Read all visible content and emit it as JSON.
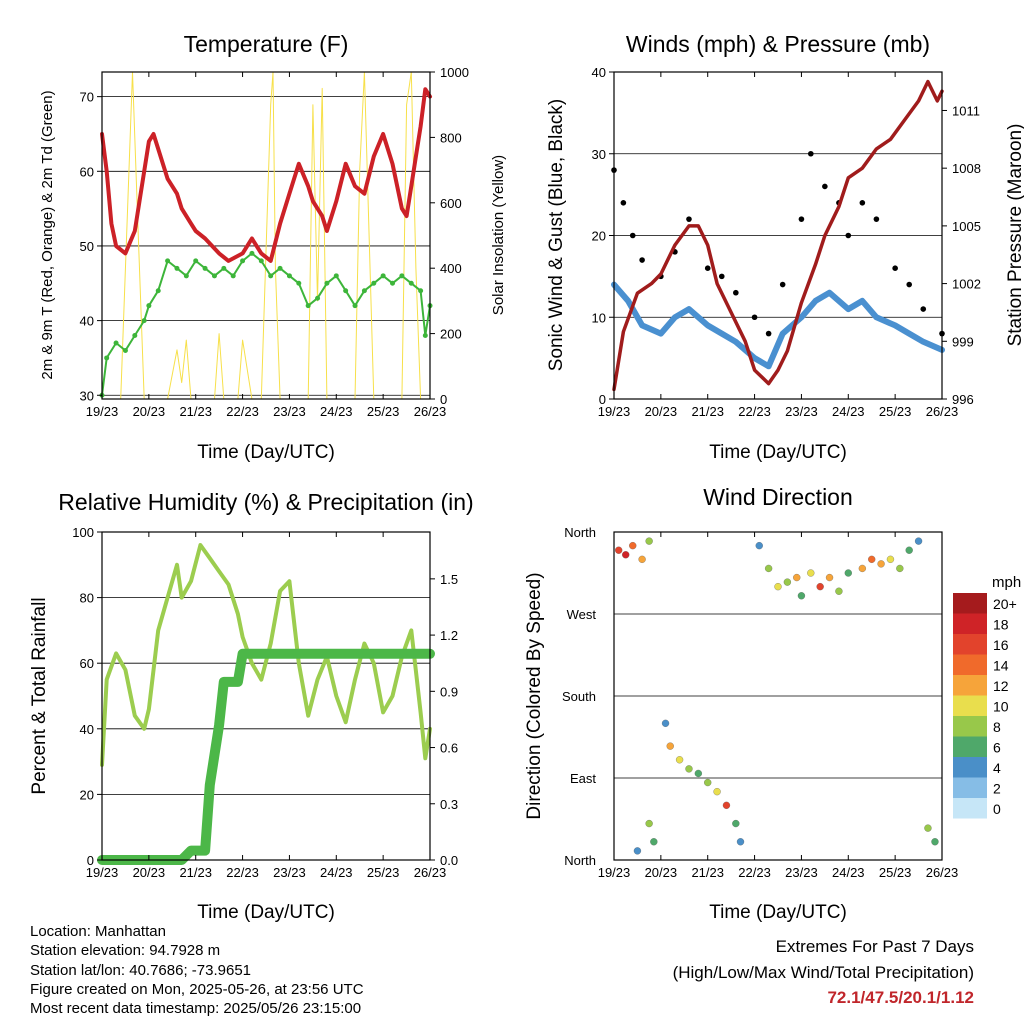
{
  "colors": {
    "temp_red": "#cc2127",
    "temp_orange": "#f08020",
    "dewpoint_green": "#3db53a",
    "solar_yellow": "#f7e04a",
    "gust_black": "#000000",
    "wind_blue": "#4a90d0",
    "pressure_maroon": "#a01c1c",
    "rh_lightgreen": "#9ccd4f",
    "precip_green": "#4cb748",
    "extremes_text": "#c0262b"
  },
  "time_ticks": [
    "19/23",
    "20/23",
    "21/23",
    "22/23",
    "23/23",
    "24/23",
    "25/23",
    "26/23"
  ],
  "panels": {
    "temperature": {
      "title": "Temperature (F)",
      "xlabel": "Time (Day/UTC)",
      "ylabel_left": "2m & 9m T (Red, Orange) & 2m Td (Green)",
      "ylabel_right": "Solar Insolation (Yellow)",
      "yticks_left": [
        "30",
        "40",
        "50",
        "60",
        "70"
      ],
      "yticks_right": [
        "0",
        "200",
        "400",
        "600",
        "800",
        "1000"
      ]
    },
    "winds": {
      "title": "Winds (mph) & Pressure (mb)",
      "xlabel": "Time (Day/UTC)",
      "ylabel_left": "Sonic Wind & Gust (Blue, Black)",
      "ylabel_right": "Station Pressure (Maroon)",
      "yticks_left": [
        "0",
        "10",
        "20",
        "30",
        "40"
      ],
      "yticks_right": [
        "996",
        "999",
        "1002",
        "1005",
        "1008",
        "1011"
      ]
    },
    "humidity": {
      "title": "Relative Humidity (%) & Precipitation (in)",
      "xlabel": "Time (Day/UTC)",
      "ylabel_left": "Percent & Total Rainfall",
      "yticks_left": [
        "0",
        "20",
        "40",
        "60",
        "80",
        "100"
      ],
      "yticks_right": [
        "0.0",
        "0.3",
        "0.6",
        "0.9",
        "1.2",
        "1.5"
      ]
    },
    "direction": {
      "title": "Wind Direction",
      "xlabel": "Time (Day/UTC)",
      "ylabel_left": "Direction (Colored By Speed)",
      "yticks_left": [
        "North",
        "East",
        "South",
        "West",
        "North"
      ],
      "legend_title": "mph",
      "legend_labels": [
        "20+",
        "18",
        "16",
        "14",
        "12",
        "10",
        "8",
        "6",
        "4",
        "2",
        "0"
      ],
      "legend_colors": [
        "#a51b1d",
        "#cf2327",
        "#e2432c",
        "#f06a2b",
        "#f6a43a",
        "#e9de4d",
        "#98c84a",
        "#4fa86a",
        "#4a8fc8",
        "#86bde6",
        "#c6e6f7"
      ]
    }
  },
  "info": {
    "location": "Location: Manhattan",
    "elevation": "Station elevation: 94.7928 m",
    "latlon": "Station lat/lon: 40.7686; -73.9651",
    "created": "Figure created on Mon, 2025-05-26, at 23:56 UTC",
    "recent": "Most recent data timestamp: 2025/05/26 23:15:00"
  },
  "extremes": {
    "line1": "Extremes For Past 7 Days",
    "line2": "(High/Low/Max Wind/Total Precipitation)",
    "values": "72.1/47.5/20.1/1.12"
  },
  "chart_data": [
    {
      "type": "line",
      "title": "Temperature (F)",
      "xlabel": "Time (Day/UTC)",
      "x_unit": "days since 19/23 UTC",
      "xlim": [
        0,
        7
      ],
      "ylim": [
        29.5,
        73.3
      ],
      "y2lim": [
        0,
        1000
      ],
      "series": [
        {
          "name": "2m T",
          "axis": "left",
          "x": [
            0,
            0.1,
            0.2,
            0.3,
            0.5,
            0.7,
            0.8,
            1.0,
            1.1,
            1.2,
            1.4,
            1.6,
            1.7,
            1.9,
            2.0,
            2.2,
            2.5,
            2.7,
            3.0,
            3.2,
            3.4,
            3.6,
            3.8,
            4.0,
            4.2,
            4.4,
            4.5,
            4.7,
            4.8,
            5.0,
            5.2,
            5.4,
            5.6,
            5.8,
            6.0,
            6.2,
            6.4,
            6.5,
            6.6,
            6.7,
            6.8,
            6.9,
            7.0
          ],
          "y": [
            65,
            60,
            53,
            50,
            49,
            52,
            56,
            64,
            65,
            63,
            59,
            57,
            55,
            53,
            52,
            51,
            49,
            48,
            49,
            51,
            49,
            48,
            53,
            57,
            61,
            58,
            56,
            54,
            52,
            56,
            61,
            58,
            57,
            62,
            65,
            61,
            55,
            54,
            58,
            62,
            66,
            71,
            70
          ]
        },
        {
          "name": "2m Td",
          "axis": "left",
          "x": [
            0,
            0.1,
            0.3,
            0.5,
            0.7,
            0.9,
            1.0,
            1.2,
            1.4,
            1.6,
            1.8,
            2.0,
            2.2,
            2.4,
            2.6,
            2.8,
            3.0,
            3.2,
            3.4,
            3.6,
            3.8,
            4.0,
            4.2,
            4.4,
            4.6,
            4.8,
            5.0,
            5.2,
            5.4,
            5.6,
            5.8,
            6.0,
            6.2,
            6.4,
            6.6,
            6.8,
            6.9,
            7.0
          ],
          "y": [
            30,
            35,
            37,
            36,
            38,
            40,
            42,
            44,
            48,
            47,
            46,
            48,
            47,
            46,
            47,
            46,
            48,
            49,
            48,
            46,
            47,
            46,
            45,
            42,
            43,
            45,
            46,
            44,
            42,
            44,
            45,
            46,
            45,
            46,
            45,
            44,
            38,
            42
          ]
        },
        {
          "name": "Solar Insolation",
          "axis": "right",
          "x": [
            0.4,
            0.55,
            0.65,
            0.75,
            0.9,
            1.4,
            1.6,
            1.7,
            1.8,
            1.9,
            2.4,
            2.5,
            2.6,
            2.9,
            3.0,
            3.2,
            3.4,
            3.6,
            3.65,
            3.7,
            3.8,
            4.4,
            4.5,
            4.6,
            4.7,
            4.8,
            5.4,
            5.5,
            5.6,
            5.7,
            5.8,
            6.4,
            6.5,
            6.6,
            6.7,
            6.8
          ],
          "y": [
            0,
            600,
            1000,
            600,
            0,
            0,
            150,
            50,
            180,
            0,
            0,
            200,
            0,
            0,
            180,
            0,
            0,
            900,
            1000,
            400,
            0,
            0,
            900,
            300,
            950,
            0,
            0,
            700,
            1000,
            500,
            0,
            0,
            900,
            1000,
            400,
            0
          ]
        }
      ]
    },
    {
      "type": "line",
      "title": "Winds (mph) & Pressure (mb)",
      "xlabel": "Time (Day/UTC)",
      "x_unit": "days since 19/23 UTC",
      "xlim": [
        0,
        7
      ],
      "ylim": [
        0,
        40
      ],
      "y2lim": [
        996,
        1013
      ],
      "series": [
        {
          "name": "Sonic Wind",
          "axis": "left",
          "x": [
            0,
            0.3,
            0.6,
            1.0,
            1.3,
            1.6,
            2.0,
            2.3,
            2.6,
            3.0,
            3.3,
            3.6,
            4.0,
            4.3,
            4.6,
            5.0,
            5.3,
            5.6,
            6.0,
            6.3,
            6.6,
            7.0
          ],
          "y": [
            14,
            12,
            9,
            8,
            10,
            11,
            9,
            8,
            7,
            5,
            4,
            8,
            10,
            12,
            13,
            11,
            12,
            10,
            9,
            8,
            7,
            6
          ]
        },
        {
          "name": "Gust",
          "axis": "left",
          "x": [
            0,
            0.2,
            0.4,
            0.6,
            1.0,
            1.3,
            1.6,
            2.0,
            2.3,
            2.6,
            3.0,
            3.3,
            3.6,
            4.0,
            4.2,
            4.5,
            4.8,
            5.0,
            5.3,
            5.6,
            6.0,
            6.3,
            6.6,
            7.0
          ],
          "y": [
            28,
            24,
            20,
            17,
            15,
            18,
            22,
            16,
            15,
            13,
            10,
            8,
            14,
            22,
            30,
            26,
            24,
            20,
            24,
            22,
            16,
            14,
            11,
            8
          ]
        },
        {
          "name": "Station Pressure",
          "axis": "right",
          "x": [
            0,
            0.2,
            0.5,
            0.8,
            1.0,
            1.3,
            1.6,
            1.8,
            2.0,
            2.2,
            2.5,
            2.8,
            3.0,
            3.3,
            3.5,
            3.7,
            4.0,
            4.3,
            4.5,
            4.8,
            5.0,
            5.3,
            5.6,
            5.9,
            6.2,
            6.5,
            6.7,
            6.9,
            7.0
          ],
          "y": [
            996.5,
            999.5,
            1001.5,
            1002,
            1002.5,
            1004,
            1005,
            1005,
            1004,
            1002,
            1000.5,
            999,
            997.5,
            996.8,
            997.5,
            998.5,
            1001,
            1003,
            1004.5,
            1006,
            1007.5,
            1008,
            1009,
            1009.5,
            1010.5,
            1011.5,
            1012.5,
            1011.5,
            1012
          ]
        }
      ]
    },
    {
      "type": "line",
      "title": "Relative Humidity (%) & Precipitation (in)",
      "xlabel": "Time (Day/UTC)",
      "ylabel": "Percent & Total Rainfall",
      "x_unit": "days since 19/23 UTC",
      "xlim": [
        0,
        7
      ],
      "ylim": [
        0,
        100
      ],
      "y2lim": [
        0,
        1.75
      ],
      "series": [
        {
          "name": "Relative Humidity",
          "axis": "left",
          "x": [
            0,
            0.1,
            0.3,
            0.5,
            0.7,
            0.9,
            1.0,
            1.2,
            1.4,
            1.6,
            1.7,
            1.9,
            2.1,
            2.3,
            2.5,
            2.7,
            2.9,
            3.0,
            3.2,
            3.4,
            3.6,
            3.8,
            4.0,
            4.2,
            4.4,
            4.6,
            4.8,
            5.0,
            5.2,
            5.4,
            5.6,
            5.8,
            6.0,
            6.2,
            6.4,
            6.6,
            6.8,
            6.9,
            7.0
          ],
          "y": [
            29,
            55,
            63,
            58,
            44,
            40,
            46,
            70,
            80,
            90,
            80,
            85,
            96,
            92,
            88,
            84,
            75,
            68,
            60,
            55,
            66,
            82,
            85,
            60,
            44,
            55,
            62,
            50,
            42,
            55,
            66,
            60,
            45,
            50,
            62,
            70,
            45,
            31,
            40
          ]
        },
        {
          "name": "Total Rainfall",
          "axis": "right",
          "x": [
            0,
            1.7,
            1.9,
            2.2,
            2.3,
            2.5,
            2.6,
            2.9,
            3.0,
            4.0,
            5.0,
            6.0,
            7.0
          ],
          "y": [
            0,
            0,
            0.05,
            0.05,
            0.4,
            0.72,
            0.95,
            0.95,
            1.1,
            1.1,
            1.1,
            1.1,
            1.1
          ]
        }
      ]
    },
    {
      "type": "scatter",
      "title": "Wind Direction",
      "xlabel": "Time (Day/UTC)",
      "ylabel": "Direction (Colored By Speed)",
      "x_unit": "days since 19/23 UTC",
      "xlim": [
        0,
        7
      ],
      "ylim": [
        0,
        360
      ],
      "color_scale": "mph",
      "points": [
        {
          "x": 0.1,
          "dir": 340,
          "mph": 16
        },
        {
          "x": 0.25,
          "dir": 335,
          "mph": 18
        },
        {
          "x": 0.4,
          "dir": 345,
          "mph": 14
        },
        {
          "x": 0.6,
          "dir": 330,
          "mph": 12
        },
        {
          "x": 0.75,
          "dir": 350,
          "mph": 8
        },
        {
          "x": 0.5,
          "dir": 10,
          "mph": 4
        },
        {
          "x": 0.75,
          "dir": 40,
          "mph": 8
        },
        {
          "x": 0.85,
          "dir": 20,
          "mph": 6
        },
        {
          "x": 1.1,
          "dir": 150,
          "mph": 4
        },
        {
          "x": 1.2,
          "dir": 125,
          "mph": 12
        },
        {
          "x": 1.4,
          "dir": 110,
          "mph": 10
        },
        {
          "x": 1.6,
          "dir": 100,
          "mph": 8
        },
        {
          "x": 1.8,
          "dir": 95,
          "mph": 6
        },
        {
          "x": 2.0,
          "dir": 85,
          "mph": 8
        },
        {
          "x": 2.2,
          "dir": 75,
          "mph": 10
        },
        {
          "x": 2.4,
          "dir": 60,
          "mph": 16
        },
        {
          "x": 2.6,
          "dir": 40,
          "mph": 6
        },
        {
          "x": 2.7,
          "dir": 20,
          "mph": 4
        },
        {
          "x": 3.1,
          "dir": 345,
          "mph": 4
        },
        {
          "x": 3.3,
          "dir": 320,
          "mph": 8
        },
        {
          "x": 3.5,
          "dir": 300,
          "mph": 10
        },
        {
          "x": 3.7,
          "dir": 305,
          "mph": 8
        },
        {
          "x": 3.9,
          "dir": 310,
          "mph": 12
        },
        {
          "x": 4.0,
          "dir": 290,
          "mph": 6
        },
        {
          "x": 4.2,
          "dir": 315,
          "mph": 10
        },
        {
          "x": 4.4,
          "dir": 300,
          "mph": 16
        },
        {
          "x": 4.6,
          "dir": 310,
          "mph": 12
        },
        {
          "x": 4.8,
          "dir": 295,
          "mph": 8
        },
        {
          "x": 5.0,
          "dir": 315,
          "mph": 6
        },
        {
          "x": 5.3,
          "dir": 320,
          "mph": 12
        },
        {
          "x": 5.5,
          "dir": 330,
          "mph": 14
        },
        {
          "x": 5.7,
          "dir": 325,
          "mph": 12
        },
        {
          "x": 5.9,
          "dir": 330,
          "mph": 10
        },
        {
          "x": 6.1,
          "dir": 320,
          "mph": 8
        },
        {
          "x": 6.3,
          "dir": 340,
          "mph": 6
        },
        {
          "x": 6.5,
          "dir": 350,
          "mph": 4
        },
        {
          "x": 6.7,
          "dir": 35,
          "mph": 8
        },
        {
          "x": 6.85,
          "dir": 20,
          "mph": 6
        }
      ]
    }
  ]
}
